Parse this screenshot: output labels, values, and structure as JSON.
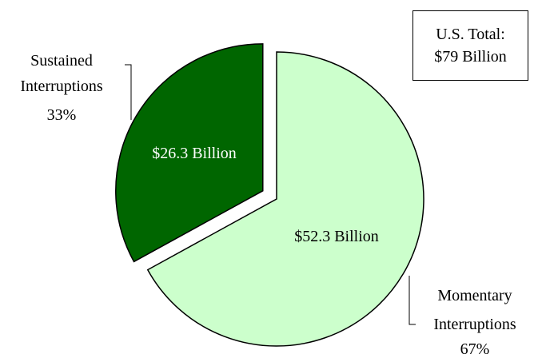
{
  "chart_data": {
    "type": "pie",
    "title": "",
    "total": {
      "line1": "U.S. Total:",
      "line2": "$79 Billion"
    },
    "slices": [
      {
        "label_lines": [
          "Sustained",
          "Interruptions",
          "33%"
        ],
        "percent": 33,
        "value_label": "$26.3 Billion",
        "value": 26.3,
        "color": "#006600",
        "text_color": "#ffffff",
        "exploded": true
      },
      {
        "label_lines": [
          "Momentary",
          "Interruptions",
          "67%"
        ],
        "percent": 67,
        "value_label": "$52.3 Billion",
        "value": 52.3,
        "color": "#ccffcc",
        "text_color": "#000000",
        "exploded": false
      }
    ]
  }
}
